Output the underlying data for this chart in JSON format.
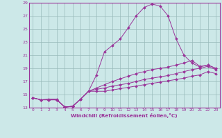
{
  "xlabel": "Windchill (Refroidissement éolien,°C)",
  "bg_color": "#cce8e8",
  "line_color": "#993399",
  "grid_color": "#99bbbb",
  "xlim": [
    -0.5,
    23.5
  ],
  "ylim": [
    13,
    29
  ],
  "yticks": [
    13,
    15,
    17,
    19,
    21,
    23,
    25,
    27,
    29
  ],
  "xticks": [
    0,
    1,
    2,
    3,
    4,
    5,
    6,
    7,
    8,
    9,
    10,
    11,
    12,
    13,
    14,
    15,
    16,
    17,
    18,
    19,
    20,
    21,
    22,
    23
  ],
  "series": [
    [
      14.5,
      14.2,
      14.3,
      14.3,
      13.1,
      13.2,
      14.3,
      15.5,
      18.0,
      21.5,
      22.5,
      23.5,
      25.2,
      27.0,
      28.3,
      28.8,
      28.5,
      27.0,
      23.5,
      21.0,
      19.8,
      19.2,
      19.5,
      19.0
    ],
    [
      14.5,
      14.2,
      14.2,
      14.2,
      13.1,
      13.2,
      14.3,
      15.5,
      16.0,
      16.5,
      17.0,
      17.4,
      17.8,
      18.2,
      18.5,
      18.8,
      19.0,
      19.2,
      19.5,
      19.8,
      20.2,
      19.3,
      19.5,
      19.0
    ],
    [
      14.5,
      14.2,
      14.2,
      14.2,
      13.1,
      13.2,
      14.3,
      15.5,
      15.8,
      16.0,
      16.3,
      16.5,
      16.7,
      17.0,
      17.3,
      17.5,
      17.7,
      17.9,
      18.2,
      18.5,
      18.8,
      19.0,
      19.3,
      18.8
    ],
    [
      14.5,
      14.2,
      14.2,
      14.2,
      13.1,
      13.2,
      14.3,
      15.5,
      15.5,
      15.5,
      15.7,
      15.9,
      16.1,
      16.3,
      16.5,
      16.7,
      16.9,
      17.1,
      17.3,
      17.5,
      17.8,
      18.0,
      18.5,
      18.2
    ]
  ]
}
